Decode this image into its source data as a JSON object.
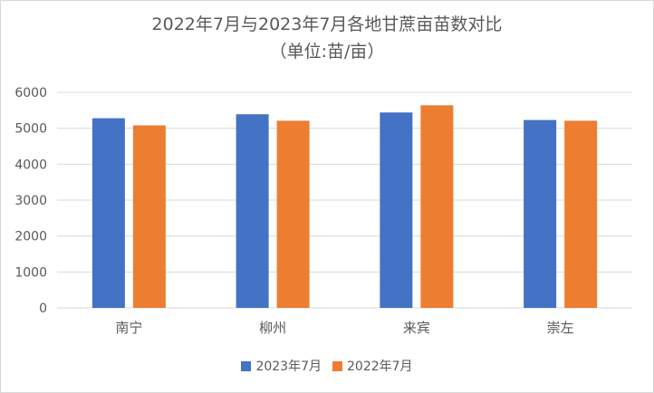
{
  "colors": {
    "series_2023": "#4472c4",
    "series_2022": "#ed7d31",
    "grid": "#d9d9d9",
    "text": "#595959"
  },
  "chart_data": {
    "type": "bar",
    "title": "2022年7月与2023年7月各地甘蔗亩苗数对比",
    "subtitle": "（单位:苗/亩）",
    "categories": [
      "南宁",
      "柳州",
      "来宾",
      "崇左"
    ],
    "series": [
      {
        "name": "2023年7月",
        "values": [
          5280,
          5390,
          5440,
          5230
        ]
      },
      {
        "name": "2022年7月",
        "values": [
          5080,
          5210,
          5640,
          5210
        ]
      }
    ],
    "ylim": [
      0,
      6000
    ],
    "yticks": [
      0,
      1000,
      2000,
      3000,
      4000,
      5000,
      6000
    ],
    "grid": true,
    "legend": "bottom"
  }
}
